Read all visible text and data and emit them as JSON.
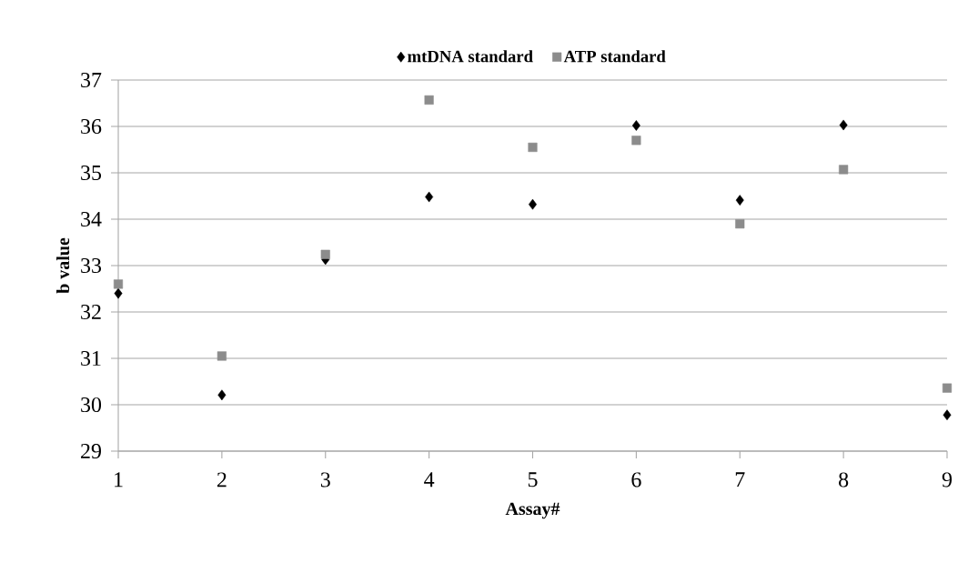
{
  "chart_data": {
    "type": "scatter",
    "xlabel": "Assay#",
    "ylabel": "b value",
    "x": [
      1,
      2,
      3,
      4,
      5,
      6,
      7,
      8,
      9
    ],
    "series": [
      {
        "name": "mtDNA standard",
        "color": "#000000",
        "marker": "diamond",
        "values": [
          32.4,
          30.21,
          33.13,
          34.48,
          34.32,
          36.02,
          34.41,
          36.03,
          29.78
        ]
      },
      {
        "name": "ATP standard",
        "color": "#8c8c8c",
        "marker": "square",
        "values": [
          32.6,
          31.05,
          33.24,
          36.57,
          35.55,
          35.7,
          33.9,
          35.07,
          30.36
        ]
      }
    ],
    "xlim": [
      1,
      9
    ],
    "xticks": [
      1,
      2,
      3,
      4,
      5,
      6,
      7,
      8,
      9
    ],
    "ylim": [
      29,
      37
    ],
    "yticks": [
      29,
      30,
      31,
      32,
      33,
      34,
      35,
      36,
      37
    ],
    "grid": "y",
    "legend": "top"
  }
}
